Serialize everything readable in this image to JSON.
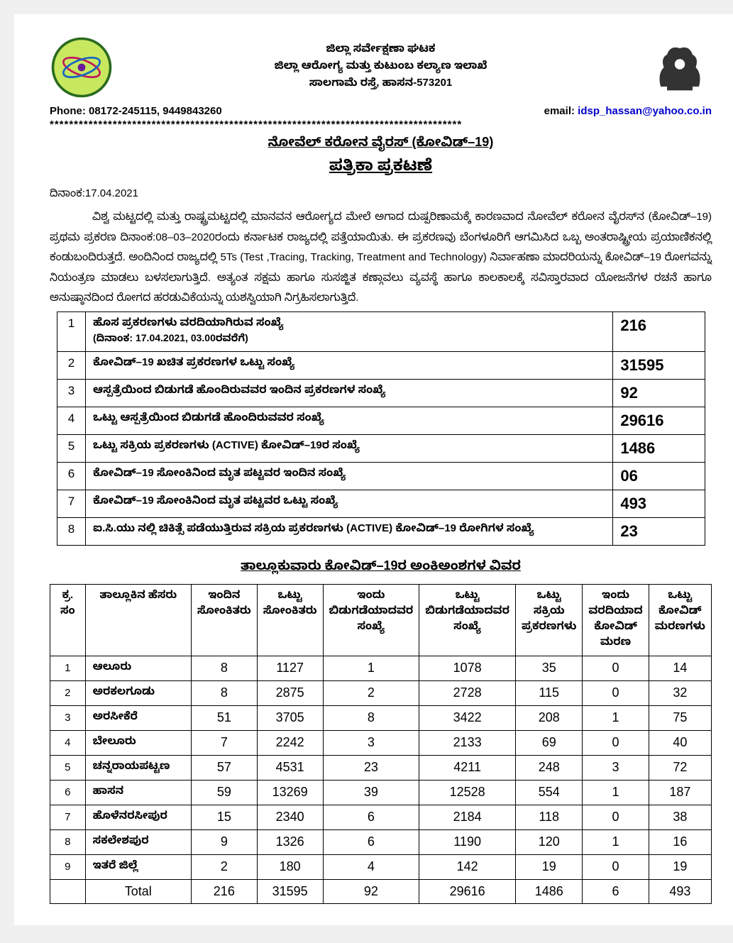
{
  "header": {
    "line1": "ಜಿಲ್ಲಾ ಸರ್ವೇಕ್ಷಣಾ ಘಟಕ",
    "line2": "ಜಿಲ್ಲಾ ಆರೋಗ್ಯ ಮತ್ತು ಕುಟುಂಬ ಕಲ್ಯಾಣ ಇಲಾಖೆ",
    "line3": "ಸಾಲಗಾಮೆ ರಸ್ತೆ, ಹಾಸನ-573201",
    "phone_label": "Phone: 08172-245115, 9449843260",
    "email_label": "email: ",
    "email": "idsp_hassan@yahoo.co.in",
    "stars": "*************************************************************************************"
  },
  "titles": {
    "t1": "ನೋವೆಲ್ ಕರೋನ ವೈರಸ್ (ಕೋವಿಡ್–19)",
    "t2": "ಪತ್ರಿಕಾ ಪ್ರಕಟಣೆ"
  },
  "date_line": "ದಿನಾಂಕ:17.04.2021",
  "body_para": "ವಿಶ್ವ ಮಟ್ಟದಲ್ಲಿ ಮತ್ತು ರಾಷ್ಟ್ರಮಟ್ಟದಲ್ಲಿ ಮಾನವನ ಆರೋಗ್ಯದ ಮೇಲೆ ಅಗಾದ ದುಷ್ಪರಿಣಾಮಕ್ಕೆ ಕಾರಣವಾದ ನೋವೆಲ್ ಕರೋನ ವೈರಸ್‌ನ (ಕೋವಿಡ್–19) ಪ್ರಥಮ ಪ್ರಕರಣ ದಿನಾಂಕ:08–03–2020ರಂದು ಕರ್ನಾಟಕ ರಾಜ್ಯದಲ್ಲಿ ಪತ್ತೆಯಾಯಿತು. ಈ ಪ್ರಕರಣವು ಬೆಂಗಳೂರಿಗೆ ಆಗಮಿಸಿದ ಒಬ್ಬ ಅಂತರಾಷ್ಟ್ರೀಯ ಪ್ರಯಾಣಿಕನಲ್ಲಿ ಕಂಡುಬಂದಿರುತ್ತದೆ. ಅಂದಿನಿಂದ ರಾಜ್ಯದಲ್ಲಿ 5Ts (Test ,Tracing, Tracking, Treatment and Technology) ನಿರ್ವಾಹಣಾ ಮಾದರಿಯನ್ನು ಕೋವಿಡ್–19 ರೋಗವನ್ನು  ನಿಯಂತ್ರಣ ಮಾಡಲು ಬಳಸಲಾಗುತ್ತಿದೆ. ಅತ್ಯಂತ ಸಕ್ಷಮ ಹಾಗೂ ಸುಸಜ್ಜಿತ ಕಣ್ಗಾವಲು ವ್ಯವಸ್ಥೆ ಹಾಗೂ ಕಾಲಕಾಲಕ್ಕೆ ಸವಿಸ್ತಾರವಾದ ಯೋಜನೆಗಳ ರಚನೆ ಹಾಗೂ ಅನುಷ್ಠಾನದಿಂದ ರೋಗದ ಹರಡುವಿಕೆಯನ್ನು ಯಶಸ್ವಿಯಾಗಿ ನಿಗ್ರಹಿಸಲಾಗುತ್ತಿದೆ.",
  "summary": {
    "rows": [
      {
        "sn": "1",
        "label": "ಹೊಸ ಪ್ರಕರಣಗಳು ವರದಿಯಾಗಿರುವ ಸಂಖ್ಯೆ",
        "sub": "(ದಿನಾಂಕ: 17.04.2021, 03.00ರವರೆಗೆ)",
        "value": "216"
      },
      {
        "sn": "2",
        "label": "ಕೋವಿಡ್–19 ಖಚಿತ ಪ್ರಕರಣಗಳ ಒಟ್ಟು ಸಂಖ್ಯೆ",
        "sub": "",
        "value": "31595"
      },
      {
        "sn": "3",
        "label": "ಆಸ್ಪತ್ರೆಯಿಂದ ಬಿಡುಗಡೆ ಹೊಂದಿರುವವರ ಇಂದಿನ ಪ್ರಕರಣಗಳ ಸಂಖ್ಯೆ",
        "sub": "",
        "value": "92"
      },
      {
        "sn": "4",
        "label": "ಒಟ್ಟು ಆಸ್ಪತ್ರೆಯಿಂದ ಬಿಡುಗಡೆ ಹೊಂದಿರುವವರ ಸಂಖ್ಯೆ",
        "sub": "",
        "value": "29616"
      },
      {
        "sn": "5",
        "label": "ಒಟ್ಟು ಸಕ್ರಿಯ ಪ್ರಕರಣಗಳು (ACTIVE) ಕೋವಿಡ್–19ರ ಸಂಖ್ಯೆ",
        "sub": "",
        "value": "1486"
      },
      {
        "sn": "6",
        "label": "ಕೋವಿಡ್–19 ಸೋಂಕಿನಿಂದ ಮೃತ ಪಟ್ಟವರ ಇಂದಿನ ಸಂಖ್ಯೆ",
        "sub": "",
        "value": "06"
      },
      {
        "sn": "7",
        "label": "ಕೋವಿಡ್–19 ಸೋಂಕಿನಿಂದ ಮೃತ ಪಟ್ಟವರ ಒಟ್ಟು ಸಂಖ್ಯೆ",
        "sub": "",
        "value": "493"
      },
      {
        "sn": "8",
        "label": "ಐ.ಸಿ.ಯು ನಲ್ಲಿ ಚಿಕಿತ್ಸೆ ಪಡೆಯುತ್ತಿರುವ ಸಕ್ರಿಯ ಪ್ರಕರಣಗಳು (ACTIVE) ಕೋವಿಡ್–19 ರೋಗಿಗಳ ಸಂಖ್ಯೆ",
        "sub": "",
        "value": "23"
      }
    ]
  },
  "taluk_section_title": "ತಾಲ್ಲೂಕುವಾರು ಕೋವಿಡ್–19ರ ಅಂಕಿಅಂಶಗಳ ವಿವರ",
  "taluk_table": {
    "headers": {
      "c0": "ಕ್ರ. ಸಂ",
      "c1": "ತಾಲ್ಲೂಕಿನ ಹೆಸರು",
      "c2": "ಇಂದಿನ ಸೋಂಕಿತರು",
      "c3": "ಒಟ್ಟು ಸೋಂಕಿತರು",
      "c4": "ಇಂದು ಬಿಡುಗಡೆಯಾದವರ ಸಂಖ್ಯೆ",
      "c5": "ಒಟ್ಟು ಬಿಡುಗಡೆಯಾದವರ ಸಂಖ್ಯೆ",
      "c6": "ಒಟ್ಟು ಸಕ್ರಿಯ ಪ್ರಕರಣಗಳು",
      "c7": "ಇಂದು ವರದಿಯಾದ ಕೋವಿಡ್ ಮರಣ",
      "c8": "ಒಟ್ಟು ಕೋವಿಡ್ ಮರಣಗಳು"
    },
    "rows": [
      {
        "sn": "1",
        "name": "ಆಲೂರು",
        "v": [
          "8",
          "1127",
          "1",
          "1078",
          "35",
          "0",
          "14"
        ]
      },
      {
        "sn": "2",
        "name": "ಅರಕಲಗೂಡು",
        "v": [
          "8",
          "2875",
          "2",
          "2728",
          "115",
          "0",
          "32"
        ]
      },
      {
        "sn": "3",
        "name": "ಅರಸೀಕೆರೆ",
        "v": [
          "51",
          "3705",
          "8",
          "3422",
          "208",
          "1",
          "75"
        ]
      },
      {
        "sn": "4",
        "name": "ಬೇಲೂರು",
        "v": [
          "7",
          "2242",
          "3",
          "2133",
          "69",
          "0",
          "40"
        ]
      },
      {
        "sn": "5",
        "name": "ಚನ್ನರಾಯಪಟ್ಟಣ",
        "v": [
          "57",
          "4531",
          "23",
          "4211",
          "248",
          "3",
          "72"
        ]
      },
      {
        "sn": "6",
        "name": "ಹಾಸನ",
        "v": [
          "59",
          "13269",
          "39",
          "12528",
          "554",
          "1",
          "187"
        ]
      },
      {
        "sn": "7",
        "name": "ಹೊಳೆನರಸೀಪುರ",
        "v": [
          "15",
          "2340",
          "6",
          "2184",
          "118",
          "0",
          "38"
        ]
      },
      {
        "sn": "8",
        "name": "ಸಕಲೇಶಪುರ",
        "v": [
          "9",
          "1326",
          "6",
          "1190",
          "120",
          "1",
          "16"
        ]
      },
      {
        "sn": "9",
        "name": "ಇತರೆ ಜಿಲ್ಲೆ",
        "v": [
          "2",
          "180",
          "4",
          "142",
          "19",
          "0",
          "19"
        ]
      }
    ],
    "total": {
      "label": "Total",
      "v": [
        "216",
        "31595",
        "92",
        "29616",
        "1486",
        "6",
        "493"
      ]
    }
  }
}
